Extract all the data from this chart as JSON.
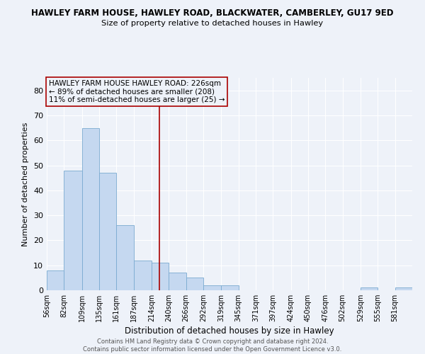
{
  "title1": "HAWLEY FARM HOUSE, HAWLEY ROAD, BLACKWATER, CAMBERLEY, GU17 9ED",
  "title2": "Size of property relative to detached houses in Hawley",
  "xlabel": "Distribution of detached houses by size in Hawley",
  "ylabel": "Number of detached properties",
  "bar_color": "#c5d8f0",
  "bar_edge_color": "#7aaad0",
  "vline_color": "#aa0000",
  "vline_x": 226,
  "categories": [
    "56sqm",
    "82sqm",
    "109sqm",
    "135sqm",
    "161sqm",
    "187sqm",
    "214sqm",
    "240sqm",
    "266sqm",
    "292sqm",
    "319sqm",
    "345sqm",
    "371sqm",
    "397sqm",
    "424sqm",
    "450sqm",
    "476sqm",
    "502sqm",
    "529sqm",
    "555sqm",
    "581sqm"
  ],
  "bin_edges": [
    56,
    82,
    109,
    135,
    161,
    187,
    214,
    240,
    266,
    292,
    319,
    345,
    371,
    397,
    424,
    450,
    476,
    502,
    529,
    555,
    581,
    607
  ],
  "values": [
    8,
    48,
    65,
    47,
    26,
    12,
    11,
    7,
    5,
    2,
    2,
    0,
    0,
    0,
    0,
    0,
    0,
    0,
    1,
    0,
    1
  ],
  "ylim": [
    0,
    85
  ],
  "yticks": [
    0,
    10,
    20,
    30,
    40,
    50,
    60,
    70,
    80
  ],
  "annotation_title": "HAWLEY FARM HOUSE HAWLEY ROAD: 226sqm",
  "annotation_line1": "← 89% of detached houses are smaller (208)",
  "annotation_line2": "11% of semi-detached houses are larger (25) →",
  "footer1": "Contains HM Land Registry data © Crown copyright and database right 2024.",
  "footer2": "Contains public sector information licensed under the Open Government Licence v3.0.",
  "background_color": "#eef2f9",
  "grid_color": "#ffffff"
}
